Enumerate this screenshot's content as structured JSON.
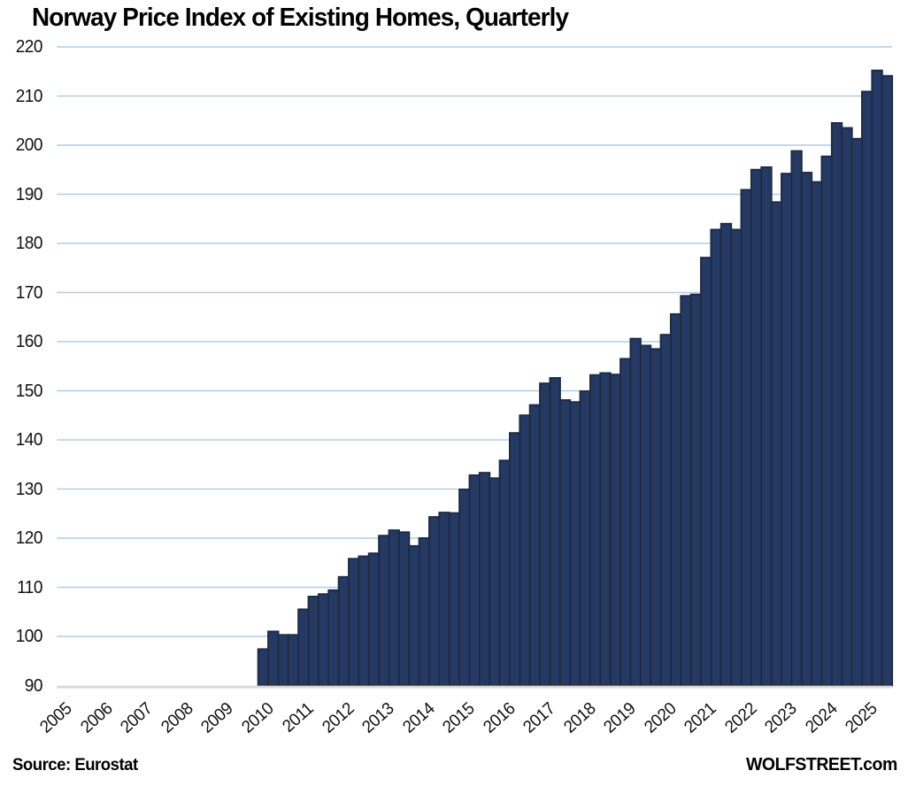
{
  "title": "Norway Price Index of Existing Homes, Quarterly",
  "footer": {
    "source": "Source: Eurostat",
    "brand": "WOLFSTREET.com"
  },
  "chart_data": {
    "type": "bar",
    "title": "Norway Price Index of Existing Homes, Quarterly",
    "xlabel": "",
    "ylabel": "",
    "ylim": [
      90,
      220
    ],
    "y_ticks": [
      90,
      100,
      110,
      120,
      130,
      140,
      150,
      160,
      170,
      180,
      190,
      200,
      210,
      220
    ],
    "x_tick_labels": [
      "2005",
      "2006",
      "2007",
      "2008",
      "2009",
      "2010",
      "2011",
      "2012",
      "2013",
      "2014",
      "2015",
      "2016",
      "2017",
      "2018",
      "2019",
      "2020",
      "2021",
      "2022",
      "2023",
      "2024",
      "2025"
    ],
    "x_axis_range": [
      "2005 Q1",
      "2025 Q3"
    ],
    "data_start": "2010 Q1",
    "data_end": "2025 Q3",
    "grid": "horizontal gridlines at every 10 index points, 100 through 220",
    "legend": "none",
    "bar_color": "#243A64",
    "bar_border_color": "#202B40",
    "gridline_color": "#B3CCE6",
    "axis_line_color": "#D9D9D9",
    "categories": [
      "2010 Q1",
      "2010 Q2",
      "2010 Q3",
      "2010 Q4",
      "2011 Q1",
      "2011 Q2",
      "2011 Q3",
      "2011 Q4",
      "2012 Q1",
      "2012 Q2",
      "2012 Q3",
      "2012 Q4",
      "2013 Q1",
      "2013 Q2",
      "2013 Q3",
      "2013 Q4",
      "2014 Q1",
      "2014 Q2",
      "2014 Q3",
      "2014 Q4",
      "2015 Q1",
      "2015 Q2",
      "2015 Q3",
      "2015 Q4",
      "2016 Q1",
      "2016 Q2",
      "2016 Q3",
      "2016 Q4",
      "2017 Q1",
      "2017 Q2",
      "2017 Q3",
      "2017 Q4",
      "2018 Q1",
      "2018 Q2",
      "2018 Q3",
      "2018 Q4",
      "2019 Q1",
      "2019 Q2",
      "2019 Q3",
      "2019 Q4",
      "2020 Q1",
      "2020 Q2",
      "2020 Q3",
      "2020 Q4",
      "2021 Q1",
      "2021 Q2",
      "2021 Q3",
      "2021 Q4",
      "2022 Q1",
      "2022 Q2",
      "2022 Q3",
      "2022 Q4",
      "2023 Q1",
      "2023 Q2",
      "2023 Q3",
      "2023 Q4",
      "2024 Q1",
      "2024 Q2",
      "2024 Q3",
      "2024 Q4",
      "2025 Q1",
      "2025 Q2",
      "2025 Q3"
    ],
    "values": [
      97.4,
      101.0,
      100.3,
      100.3,
      105.5,
      108.1,
      108.6,
      109.4,
      112.1,
      115.8,
      116.3,
      116.9,
      120.5,
      121.6,
      121.2,
      118.4,
      120.0,
      124.3,
      125.2,
      125.1,
      129.9,
      132.8,
      133.3,
      132.2,
      135.8,
      141.4,
      145.0,
      147.1,
      151.5,
      152.6,
      148.1,
      147.7,
      149.9,
      153.2,
      153.6,
      153.3,
      156.5,
      160.6,
      159.2,
      158.5,
      161.4,
      165.6,
      169.3,
      169.6,
      177.1,
      182.8,
      184.0,
      182.8,
      190.9,
      195.0,
      195.5,
      188.4,
      194.2,
      198.8,
      194.4,
      192.5,
      197.7,
      204.5,
      203.5,
      201.3,
      210.9,
      215.2,
      214.1
    ]
  }
}
